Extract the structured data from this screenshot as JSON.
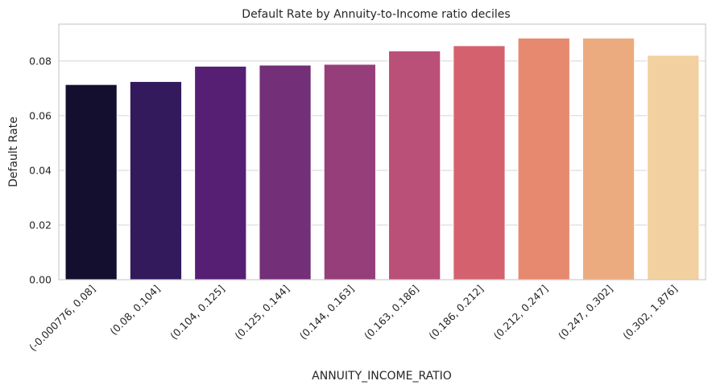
{
  "chart_data": {
    "type": "bar",
    "title": "Default Rate by Annuity-to-Income ratio deciles",
    "xlabel": "ANNUITY_INCOME_RATIO",
    "ylabel": "Default Rate",
    "categories": [
      "(-0.000776, 0.08]",
      "(0.08, 0.104]",
      "(0.104, 0.125]",
      "(0.125, 0.144]",
      "(0.144, 0.163]",
      "(0.163, 0.186]",
      "(0.186, 0.212]",
      "(0.212, 0.247]",
      "(0.247, 0.302]",
      "(0.302, 1.876]"
    ],
    "values": [
      0.0714,
      0.0725,
      0.0781,
      0.0785,
      0.0788,
      0.0837,
      0.0856,
      0.0884,
      0.0884,
      0.0821
    ],
    "colors": [
      "#140f2e",
      "#321a5d",
      "#561f73",
      "#732f78",
      "#953e7a",
      "#ba4f77",
      "#d4626e",
      "#e6896f",
      "#ecab7f",
      "#f2d0a0"
    ],
    "ylim": [
      0,
      0.0935
    ],
    "yticks": [
      0,
      0.02,
      0.04,
      0.06,
      0.08
    ],
    "ytick_labels": [
      "0.00",
      "0.02",
      "0.04",
      "0.06",
      "0.08"
    ],
    "grid": "horizontal",
    "legend": "none"
  }
}
